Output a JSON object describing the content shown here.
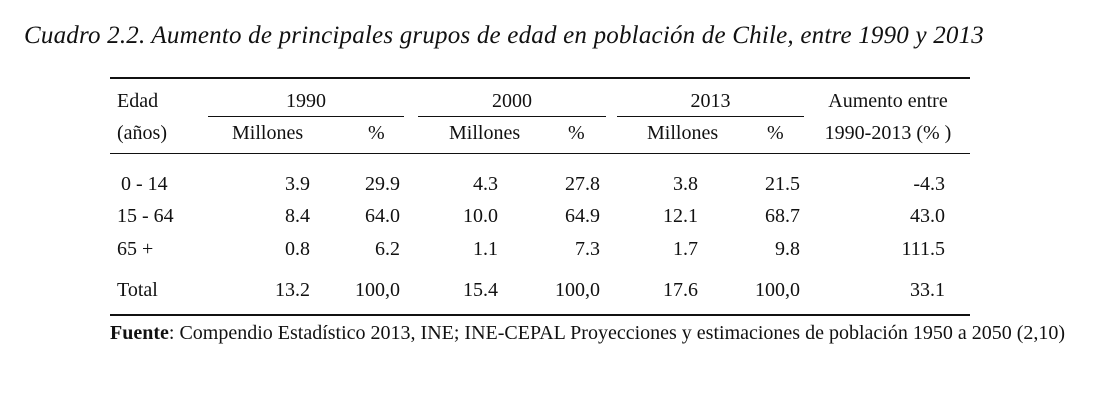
{
  "title": "Cuadro 2.2.  Aumento de  principales grupos de edad en población de Chile, entre 1990 y 2013",
  "header": {
    "edad_line1": "Edad",
    "edad_line2": "(años)",
    "years": [
      "1990",
      "2000",
      "2013"
    ],
    "millones": "Millones",
    "pct": "%",
    "aumento_line1": "Aumento entre",
    "aumento_line2": "1990-2013 (% )"
  },
  "rows": [
    {
      "edad": "0 - 14",
      "m1990": "3.9",
      "p1990": "29.9",
      "m2000": "4.3",
      "p2000": "27.8",
      "m2013": "3.8",
      "p2013": "21.5",
      "aumento": "-4.3"
    },
    {
      "edad": "15 - 64",
      "m1990": "8.4",
      "p1990": "64.0",
      "m2000": "10.0",
      "p2000": "64.9",
      "m2013": "12.1",
      "p2013": "68.7",
      "aumento": "43.0"
    },
    {
      "edad": "65 +",
      "m1990": "0.8",
      "p1990": "6.2",
      "m2000": "1.1",
      "p2000": "7.3",
      "m2013": "1.7",
      "p2013": "9.8",
      "aumento": "111.5"
    }
  ],
  "total": {
    "edad": "Total",
    "m1990": "13.2",
    "p1990": "100,0",
    "m2000": "15.4",
    "p2000": "100,0",
    "m2013": "17.6",
    "p2013": "100,0",
    "aumento": "33.1"
  },
  "source": {
    "label": "Fuente",
    "text": ": Compendio Estadístico 2013, INE; INE-CEPAL Proyecciones y estimaciones de población 1950 a 2050 (2,10)"
  }
}
